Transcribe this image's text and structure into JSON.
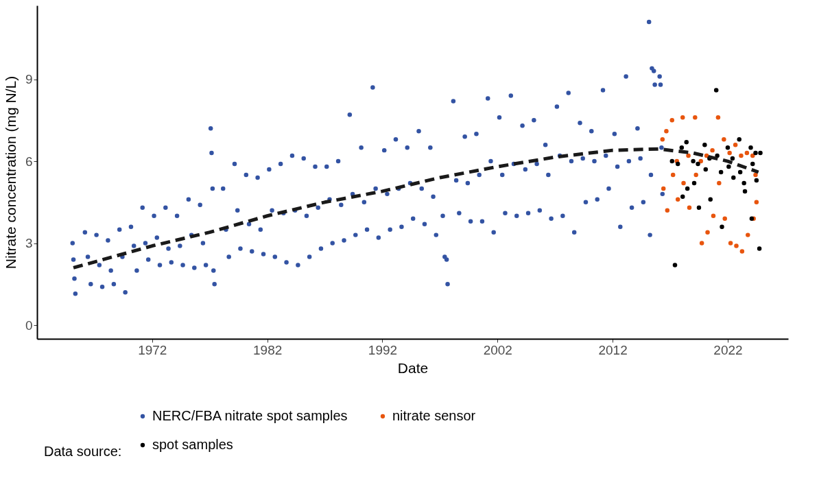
{
  "chart_data": {
    "type": "scatter",
    "xlabel": "Date",
    "ylabel": "Nitrate concentration (mg N/L)",
    "legend_title": "Data source:",
    "legend": "bottom",
    "grid": false,
    "xlim": [
      "1962",
      "2027-04"
    ],
    "xticks": [
      "1972",
      "1982",
      "1992",
      "2002",
      "2012",
      "2022"
    ],
    "ylim": [
      -0.5,
      11.7
    ],
    "yticks": [
      0,
      3,
      6,
      9
    ],
    "series": [
      {
        "name": "NERC/FBA nitrate spot samples",
        "color": "#3353a3",
        "type": "scatter",
        "x": [
          "1965-02",
          "1965-03",
          "1965-04",
          "1965-05",
          "1966-03",
          "1966-06",
          "1966-09",
          "1967-03",
          "1967-06",
          "1967-09",
          "1968-03",
          "1968-06",
          "1968-09",
          "1969-03",
          "1969-06",
          "1969-09",
          "1970-03",
          "1970-06",
          "1970-09",
          "1971-03",
          "1971-06",
          "1971-09",
          "1972-03",
          "1972-06",
          "1972-09",
          "1973-03",
          "1973-06",
          "1973-09",
          "1974-03",
          "1974-06",
          "1974-09",
          "1975-03",
          "1975-06",
          "1975-09",
          "1976-03",
          "1976-06",
          "1976-09",
          "1977-02",
          "1977-03",
          "1977-04",
          "1977-05",
          "1977-06",
          "1978-03",
          "1978-06",
          "1978-09",
          "1979-03",
          "1979-06",
          "1979-09",
          "1980-03",
          "1980-06",
          "1980-09",
          "1981-03",
          "1981-06",
          "1981-09",
          "1982-03",
          "1982-06",
          "1982-09",
          "1983-03",
          "1983-06",
          "1983-09",
          "1984-03",
          "1984-06",
          "1984-09",
          "1985-03",
          "1985-06",
          "1985-09",
          "1986-03",
          "1986-06",
          "1986-09",
          "1987-03",
          "1987-06",
          "1987-09",
          "1988-03",
          "1988-06",
          "1988-09",
          "1989-03",
          "1989-06",
          "1989-09",
          "1990-03",
          "1990-06",
          "1990-09",
          "1991-03",
          "1991-06",
          "1991-09",
          "1992-03",
          "1992-06",
          "1992-09",
          "1993-03",
          "1993-06",
          "1993-09",
          "1994-03",
          "1994-06",
          "1994-09",
          "1995-03",
          "1995-06",
          "1995-09",
          "1996-03",
          "1996-06",
          "1996-09",
          "1997-04",
          "1997-06",
          "1997-08",
          "1997-09",
          "1998-03",
          "1998-06",
          "1998-09",
          "1999-03",
          "1999-06",
          "1999-09",
          "2000-03",
          "2000-06",
          "2000-09",
          "2001-03",
          "2001-06",
          "2001-09",
          "2002-03",
          "2002-06",
          "2002-09",
          "2003-03",
          "2003-06",
          "2003-09",
          "2004-03",
          "2004-06",
          "2004-09",
          "2005-03",
          "2005-06",
          "2005-09",
          "2006-03",
          "2006-06",
          "2006-09",
          "2007-03",
          "2007-06",
          "2007-09",
          "2008-03",
          "2008-06",
          "2008-09",
          "2009-03",
          "2009-06",
          "2009-09",
          "2010-03",
          "2010-06",
          "2010-09",
          "2011-03",
          "2011-06",
          "2011-09",
          "2012-03",
          "2012-06",
          "2012-09",
          "2013-03",
          "2013-06",
          "2013-09",
          "2014-03",
          "2014-06",
          "2014-09",
          "2015-03",
          "2015-04",
          "2015-05",
          "2015-06",
          "2015-08",
          "2015-09",
          "2016-02",
          "2016-03",
          "2016-04",
          "2016-05"
        ],
        "values": [
          3.0,
          2.4,
          1.7,
          1.15,
          3.4,
          2.5,
          1.5,
          3.3,
          2.2,
          1.4,
          3.1,
          2.0,
          1.5,
          3.5,
          2.5,
          1.2,
          3.6,
          2.9,
          2.0,
          4.3,
          3.0,
          2.4,
          4.0,
          3.2,
          2.2,
          4.3,
          2.8,
          2.3,
          4.0,
          2.9,
          2.2,
          4.6,
          3.3,
          2.1,
          4.4,
          3.0,
          2.2,
          7.2,
          6.3,
          5.0,
          2.0,
          1.5,
          5.0,
          3.5,
          2.5,
          5.9,
          4.2,
          2.8,
          5.5,
          3.7,
          2.7,
          5.4,
          3.5,
          2.6,
          5.7,
          4.2,
          2.5,
          5.9,
          4.1,
          2.3,
          6.2,
          4.2,
          2.2,
          6.1,
          4.0,
          2.5,
          5.8,
          4.3,
          2.8,
          5.8,
          4.6,
          3.0,
          6.0,
          4.4,
          3.1,
          7.7,
          4.8,
          3.3,
          6.5,
          4.5,
          3.5,
          8.7,
          5.0,
          3.2,
          6.4,
          4.8,
          3.5,
          6.8,
          5.0,
          3.6,
          6.5,
          5.2,
          3.9,
          7.1,
          5.0,
          3.7,
          6.5,
          4.7,
          3.3,
          4.0,
          2.5,
          2.4,
          1.5,
          8.2,
          5.3,
          4.1,
          6.9,
          5.2,
          3.8,
          7.0,
          5.5,
          3.8,
          8.3,
          6.0,
          3.4,
          7.6,
          5.5,
          4.1,
          8.4,
          5.9,
          4.0,
          7.3,
          5.7,
          4.1,
          7.5,
          5.9,
          4.2,
          6.6,
          5.5,
          3.9,
          8.0,
          6.2,
          4.0,
          8.5,
          6.0,
          3.4,
          7.4,
          6.1,
          4.5,
          7.1,
          6.0,
          4.6,
          8.6,
          6.2,
          5.0,
          7.0,
          5.8,
          3.6,
          9.1,
          6.0,
          4.3,
          7.2,
          6.1,
          4.5,
          11.1,
          3.3,
          5.5,
          9.4,
          9.3,
          8.8,
          9.1,
          8.8,
          6.5,
          4.8
        ]
      },
      {
        "name": "nitrate sensor",
        "color": "#e8550e",
        "type": "scatter",
        "x": [
          "2016-05",
          "2016-06",
          "2016-09",
          "2016-10",
          "2017-03",
          "2017-04",
          "2017-08",
          "2017-09",
          "2018-02",
          "2018-03",
          "2018-08",
          "2018-09",
          "2019-03",
          "2019-04",
          "2019-09",
          "2019-10",
          "2020-03",
          "2020-04",
          "2020-09",
          "2020-10",
          "2021-03",
          "2021-04",
          "2021-09",
          "2021-10",
          "2022-03",
          "2022-04",
          "2022-09",
          "2022-10",
          "2023-03",
          "2023-04",
          "2023-09",
          "2023-10",
          "2024-03",
          "2024-04",
          "2024-06",
          "2024-07"
        ],
        "values": [
          6.8,
          5.0,
          7.1,
          4.2,
          7.5,
          5.5,
          6.0,
          4.6,
          7.6,
          5.2,
          6.2,
          4.3,
          7.6,
          5.5,
          6.0,
          3.0,
          6.2,
          3.4,
          6.4,
          4.0,
          7.6,
          5.2,
          6.8,
          3.9,
          6.3,
          3.0,
          6.6,
          2.9,
          6.2,
          2.7,
          6.3,
          3.3,
          6.2,
          3.9,
          5.5,
          4.5
        ]
      },
      {
        "name": "spot samples",
        "color": "#000000",
        "type": "scatter",
        "x": [
          "2017-03",
          "2017-06",
          "2017-09",
          "2018-01",
          "2018-02",
          "2018-06",
          "2018-07",
          "2019-01",
          "2019-02",
          "2019-06",
          "2019-07",
          "2020-01",
          "2020-02",
          "2020-06",
          "2020-07",
          "2021-01",
          "2021-02",
          "2021-06",
          "2021-07",
          "2022-01",
          "2022-02",
          "2022-06",
          "2022-07",
          "2023-01",
          "2023-02",
          "2023-06",
          "2023-07",
          "2024-01",
          "2024-02",
          "2024-03",
          "2024-06",
          "2024-07",
          "2024-10",
          "2024-11"
        ],
        "values": [
          6.0,
          2.2,
          5.9,
          6.5,
          4.7,
          6.7,
          5.0,
          6.0,
          5.2,
          5.9,
          4.3,
          6.6,
          5.7,
          6.1,
          4.6,
          8.6,
          6.2,
          5.6,
          3.6,
          6.5,
          5.8,
          6.1,
          5.4,
          6.8,
          5.6,
          5.2,
          4.9,
          6.5,
          3.9,
          5.9,
          6.3,
          5.3,
          2.8,
          6.3
        ]
      },
      {
        "color": "#1a1a1a",
        "type": "line",
        "line_style": "dashed",
        "x": [
          "1965-03",
          "1972",
          "1977",
          "1982",
          "1987",
          "1992",
          "1997",
          "2002",
          "2007",
          "2012",
          "2016",
          "2019",
          "2022",
          "2024-09"
        ],
        "values": [
          2.1,
          2.9,
          3.4,
          4.0,
          4.5,
          4.9,
          5.4,
          5.8,
          6.15,
          6.4,
          6.45,
          6.3,
          6.0,
          5.6
        ]
      }
    ]
  }
}
